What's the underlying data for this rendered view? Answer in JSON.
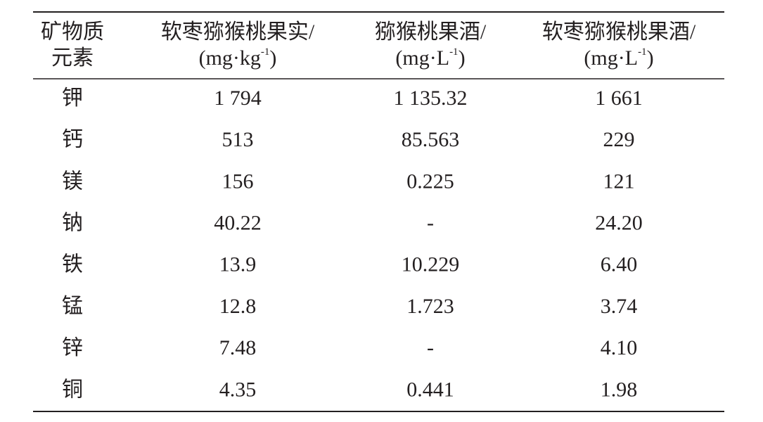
{
  "table": {
    "header": [
      {
        "lines": [
          "矿物质",
          "元素"
        ]
      },
      {
        "line1": "软枣猕猴桃果实/",
        "unit": "(mg·kg",
        "sup": "-1",
        "close": ")"
      },
      {
        "line1": "猕猴桃果酒/",
        "unit": "(mg·L",
        "sup": "-1",
        "close": ")"
      },
      {
        "line1": "软枣猕猴桃果酒/",
        "unit": "(mg·L",
        "sup": "-1",
        "close": ")"
      }
    ],
    "rows": [
      [
        "钾",
        "1 794",
        "1 135.32",
        "1 661"
      ],
      [
        "钙",
        "513",
        "85.563",
        "229"
      ],
      [
        "镁",
        "156",
        "0.225",
        "121"
      ],
      [
        "钠",
        "40.22",
        "-",
        "24.20"
      ],
      [
        "铁",
        "13.9",
        "10.229",
        "6.40"
      ],
      [
        "锰",
        "12.8",
        "1.723",
        "3.74"
      ],
      [
        "锌",
        "7.48",
        "-",
        "4.10"
      ],
      [
        "铜",
        "4.35",
        "0.441",
        "1.98"
      ]
    ]
  }
}
